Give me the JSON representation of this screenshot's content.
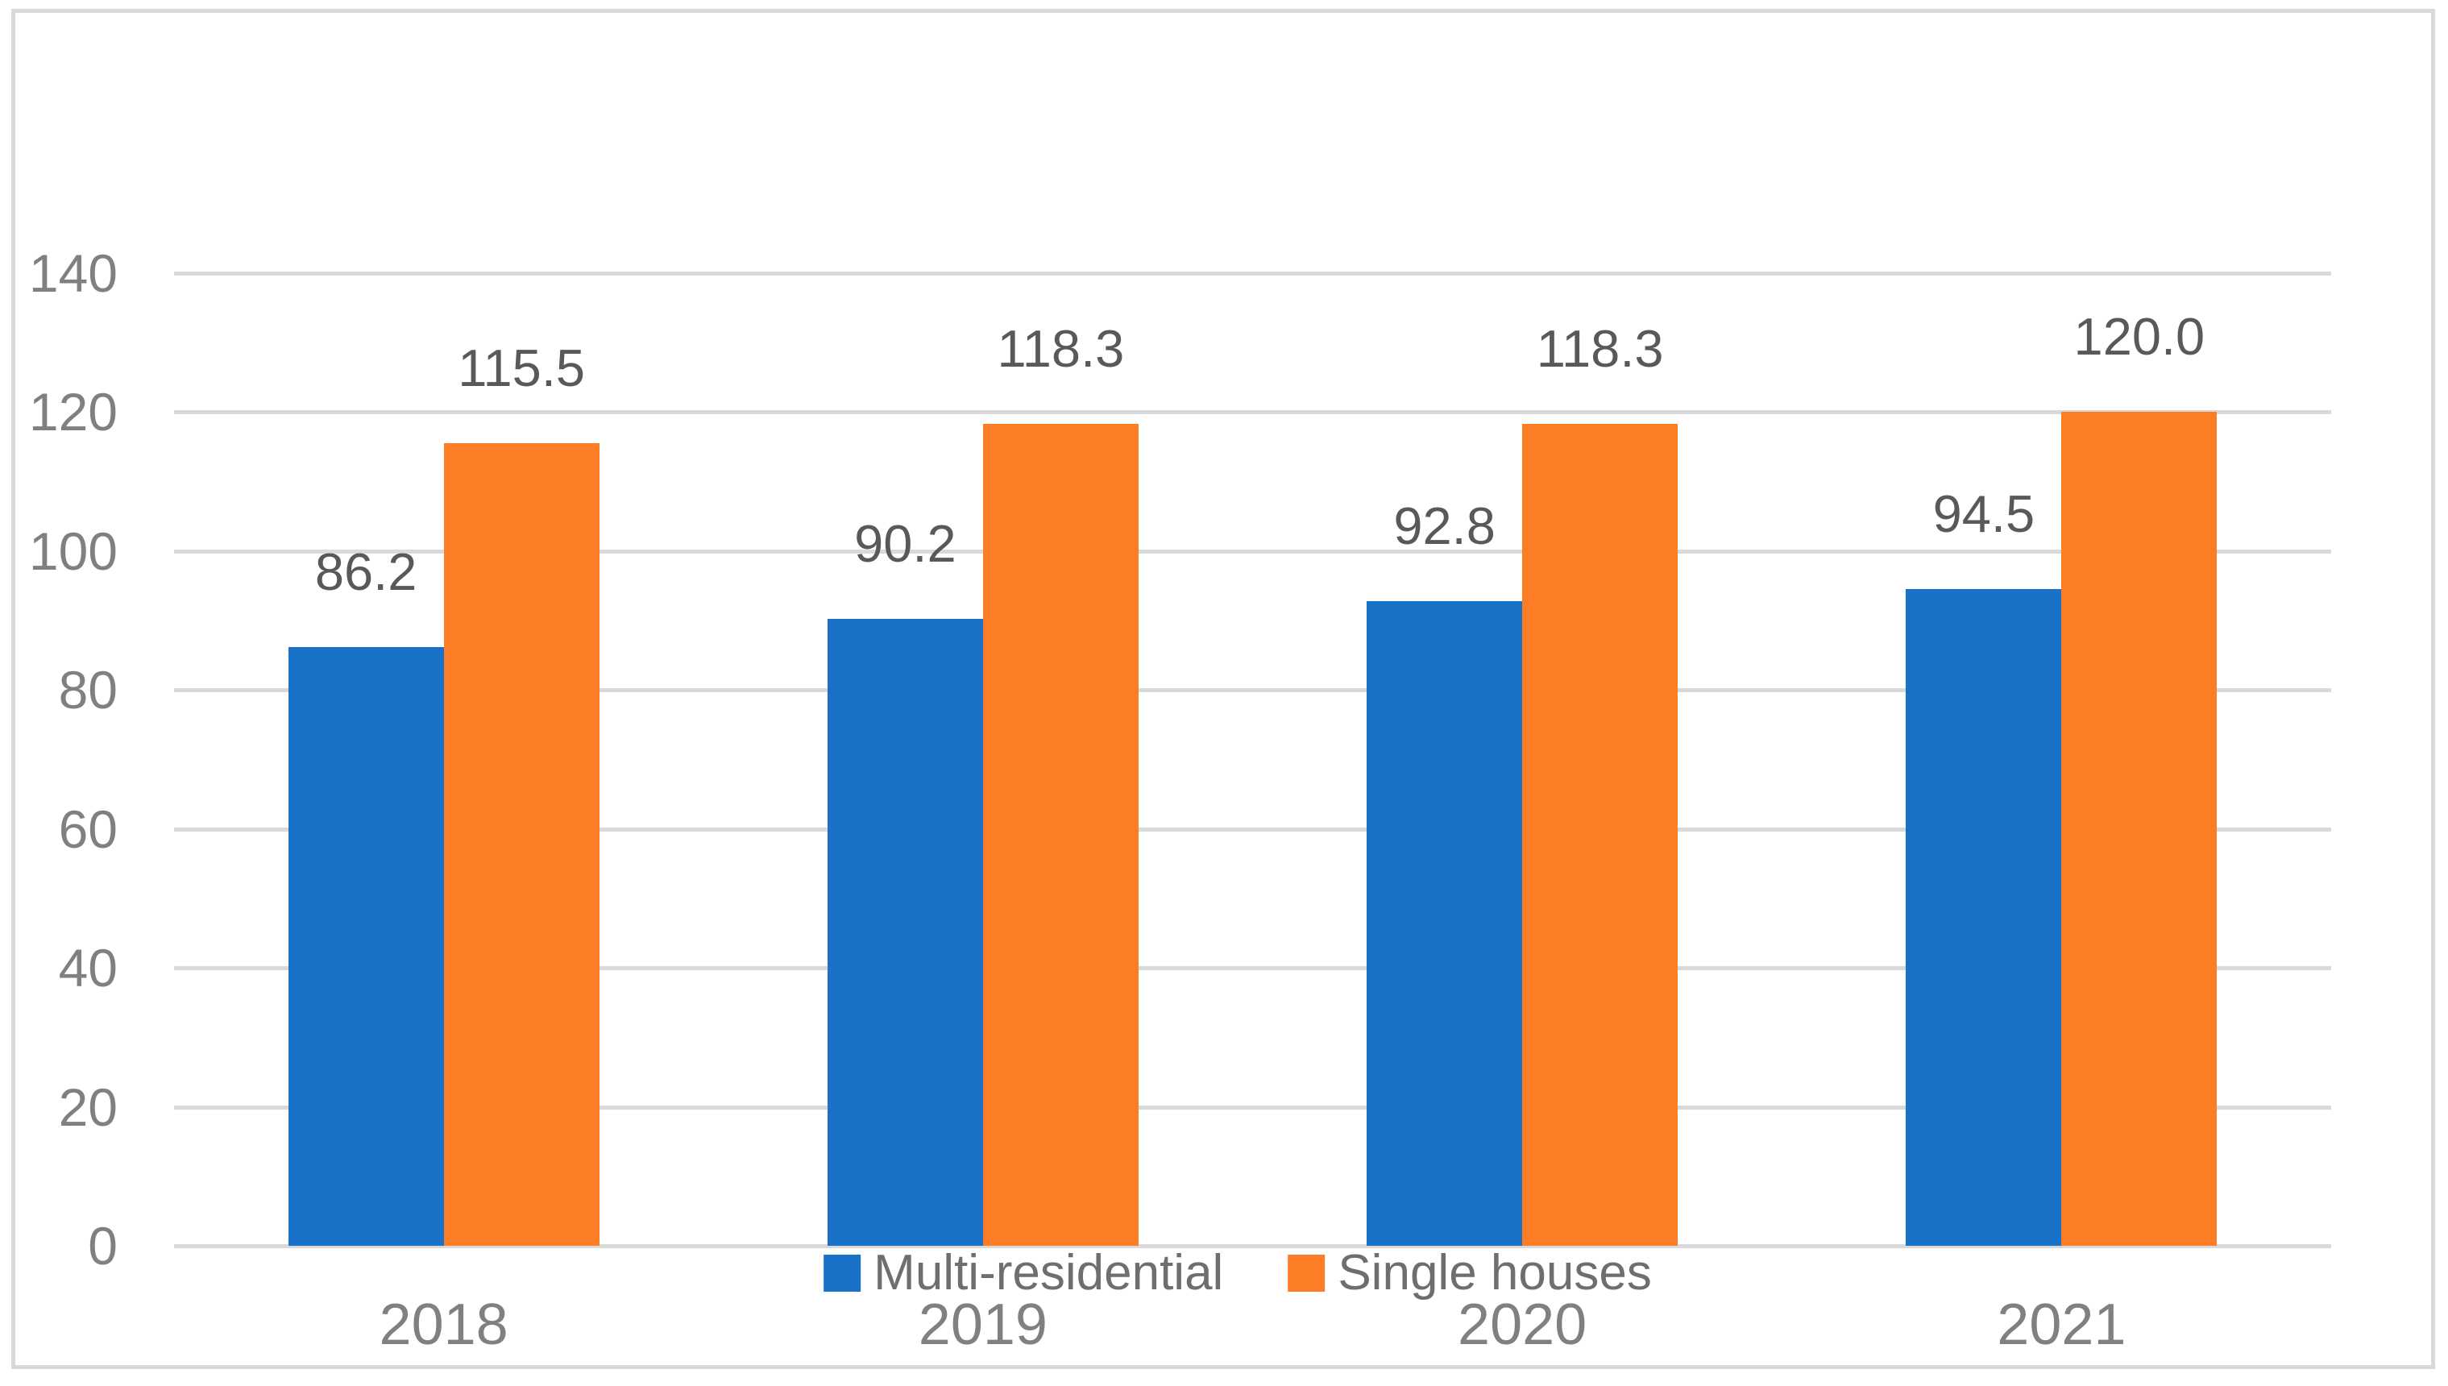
{
  "chart_data": {
    "type": "bar",
    "title": "",
    "xlabel": "",
    "ylabel": "",
    "categories": [
      "2018",
      "2019",
      "2020",
      "2021"
    ],
    "series": [
      {
        "name": "Multi-residential",
        "color": "#1972C8",
        "values": [
          86.2,
          90.2,
          92.8,
          94.5
        ]
      },
      {
        "name": "Single houses",
        "color": "#FD7D26",
        "values": [
          115.5,
          118.3,
          118.3,
          120.0
        ]
      }
    ],
    "ylim": [
      0,
      140
    ],
    "yticks": [
      0,
      20,
      40,
      60,
      80,
      100,
      120,
      140
    ],
    "grid": true,
    "gridlines_horizontal": true,
    "legend_position": "bottom-center",
    "data_labels_format": "one-decimal",
    "data_labels_position": "outside-end"
  },
  "colors": {
    "series_blue": "#1972C8",
    "series_orange": "#FD7D26",
    "gridline": "#D9D9D9",
    "chart_border": "#D9D9D9",
    "tick_label_text": "#808080",
    "category_label_text": "#808080",
    "data_label_text": "#595959",
    "legend_text": "#6E6E6E",
    "background": "#FFFFFF"
  }
}
